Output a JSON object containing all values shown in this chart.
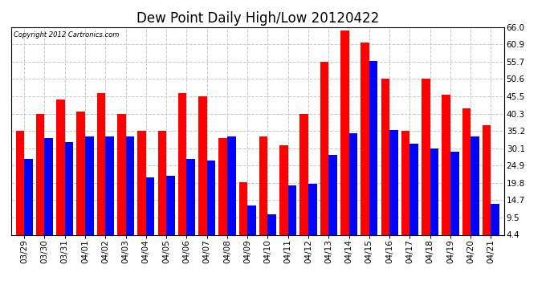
{
  "title": "Dew Point Daily High/Low 20120422",
  "copyright": "Copyright 2012 Cartronics.com",
  "dates": [
    "03/29",
    "03/30",
    "03/31",
    "04/01",
    "04/02",
    "04/03",
    "04/04",
    "04/05",
    "04/06",
    "04/07",
    "04/08",
    "04/09",
    "04/10",
    "04/11",
    "04/12",
    "04/13",
    "04/14",
    "04/15",
    "04/16",
    "04/17",
    "04/18",
    "04/19",
    "04/20",
    "04/21"
  ],
  "highs": [
    35.2,
    40.3,
    44.5,
    41.0,
    46.5,
    40.3,
    35.2,
    35.2,
    46.5,
    45.5,
    33.0,
    20.0,
    33.5,
    31.0,
    40.3,
    55.7,
    65.0,
    61.5,
    50.6,
    35.2,
    50.6,
    46.0,
    42.0,
    37.0
  ],
  "lows": [
    27.0,
    33.0,
    32.0,
    33.5,
    33.5,
    33.5,
    21.5,
    22.0,
    27.0,
    26.5,
    33.5,
    13.0,
    10.5,
    19.0,
    19.5,
    28.0,
    34.5,
    56.0,
    35.5,
    31.5,
    30.0,
    29.0,
    33.5,
    13.5
  ],
  "high_color": "#ff0000",
  "low_color": "#0000ff",
  "bg_color": "#ffffff",
  "grid_color": "#c8c8c8",
  "yticks": [
    4.4,
    9.5,
    14.7,
    19.8,
    24.9,
    30.1,
    35.2,
    40.3,
    45.5,
    50.6,
    55.7,
    60.9,
    66.0
  ],
  "ymin": 4.4,
  "ymax": 66.0,
  "bar_width": 0.42,
  "title_fontsize": 12,
  "tick_fontsize": 7.5
}
